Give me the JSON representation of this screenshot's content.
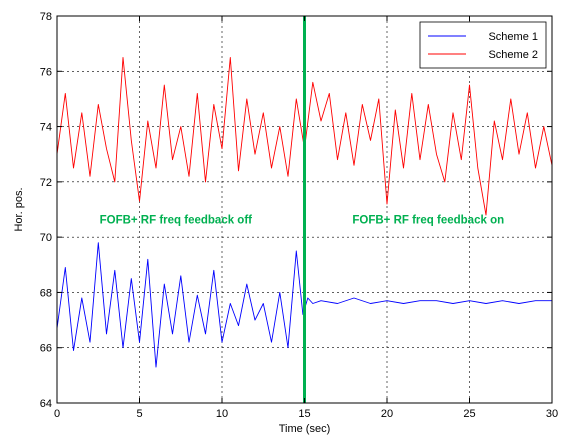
{
  "chart_data": {
    "type": "line",
    "title": "",
    "xlabel": "Time (sec)",
    "ylabel": "Hor. pos.",
    "xlim": [
      0,
      30
    ],
    "ylim": [
      64,
      78
    ],
    "xticks": [
      0,
      5,
      10,
      15,
      20,
      25,
      30
    ],
    "yticks": [
      64,
      66,
      68,
      70,
      72,
      74,
      76,
      78
    ],
    "grid": true,
    "legend_position": "top-right",
    "series": [
      {
        "name": "Scheme 1",
        "color": "#0000ff",
        "x": [
          0,
          0.5,
          1,
          1.5,
          2,
          2.5,
          3,
          3.5,
          4,
          4.5,
          5,
          5.5,
          6,
          6.5,
          7,
          7.5,
          8,
          8.5,
          9,
          9.5,
          10,
          10.5,
          11,
          11.5,
          12,
          12.5,
          13,
          13.5,
          14,
          14.5,
          14.9,
          15.2,
          15.5,
          16,
          17,
          18,
          19,
          20,
          21,
          22,
          23,
          24,
          25,
          26,
          27,
          28,
          29,
          30
        ],
        "y": [
          66.7,
          68.9,
          65.9,
          67.8,
          66.2,
          69.8,
          66.5,
          68.8,
          66.0,
          68.5,
          66.2,
          69.2,
          65.3,
          68.3,
          66.5,
          68.6,
          66.2,
          67.9,
          66.5,
          68.8,
          66.2,
          67.6,
          66.8,
          68.3,
          67.0,
          67.6,
          66.2,
          68.0,
          66.0,
          69.5,
          67.2,
          67.8,
          67.6,
          67.7,
          67.6,
          67.8,
          67.6,
          67.7,
          67.6,
          67.7,
          67.7,
          67.6,
          67.7,
          67.6,
          67.7,
          67.6,
          67.7,
          67.7
        ]
      },
      {
        "name": "Scheme 2",
        "color": "#ff0000",
        "x": [
          0,
          0.5,
          1,
          1.5,
          2,
          2.5,
          3,
          3.5,
          4,
          4.5,
          5,
          5.5,
          6,
          6.5,
          7,
          7.5,
          8,
          8.5,
          9,
          9.5,
          10,
          10.5,
          11,
          11.5,
          12,
          12.5,
          13,
          13.5,
          14,
          14.5,
          15,
          15.5,
          16,
          16.5,
          17,
          17.5,
          18,
          18.5,
          19,
          19.5,
          20,
          20.5,
          21,
          21.5,
          22,
          22.5,
          23,
          23.5,
          24,
          24.5,
          25,
          25.5,
          26,
          26.5,
          27,
          27.5,
          28,
          28.5,
          29,
          29.5,
          30
        ],
        "y": [
          73.0,
          75.2,
          72.5,
          74.5,
          72.2,
          74.8,
          73.2,
          72.0,
          76.5,
          73.5,
          71.3,
          74.2,
          72.5,
          75.5,
          72.8,
          74.0,
          72.2,
          75.2,
          72.0,
          74.8,
          73.2,
          76.5,
          72.4,
          75.0,
          73.0,
          74.5,
          72.5,
          74.0,
          72.2,
          75.0,
          73.2,
          75.6,
          74.2,
          75.2,
          72.8,
          74.5,
          72.6,
          74.8,
          73.5,
          75.0,
          71.2,
          74.6,
          72.5,
          75.2,
          72.8,
          74.8,
          73.0,
          72.0,
          74.5,
          72.8,
          75.5,
          72.5,
          70.8,
          74.2,
          72.8,
          75.0,
          73.0,
          74.5,
          72.5,
          74.0,
          72.6
        ]
      }
    ],
    "annotations": [
      {
        "text": "FOFB+ RF freq feedback off",
        "x": 7.2,
        "y": 70.5,
        "color": "#00b050"
      },
      {
        "text": "FOFB+ RF freq feedback on",
        "x": 22.5,
        "y": 70.5,
        "color": "#00b050"
      }
    ],
    "vertical_line": {
      "x": 15,
      "color": "#00b050"
    }
  }
}
